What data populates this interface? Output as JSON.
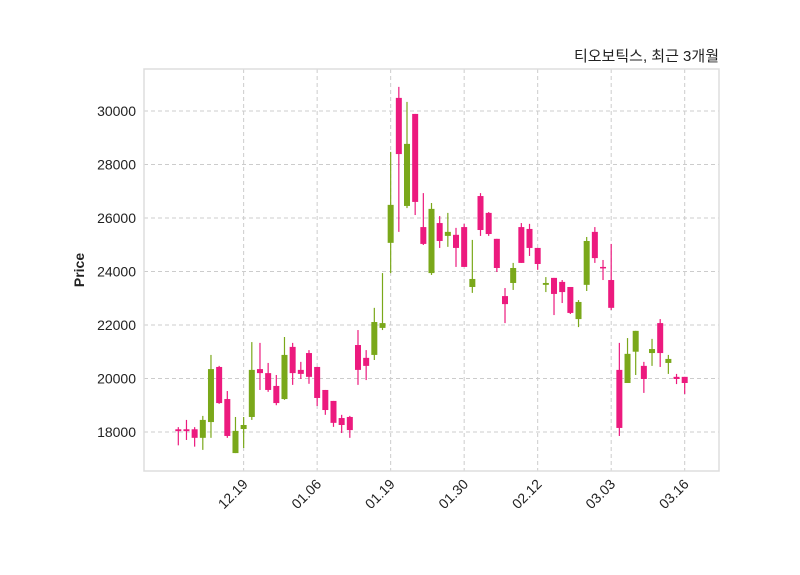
{
  "chart_data": {
    "type": "candlestick",
    "title": "티오보틱스, 최근 3개월",
    "xlabel": "",
    "ylabel": "Price",
    "ylim": [
      16540,
      31570
    ],
    "xlim": [
      -4.2,
      66.2
    ],
    "grid": true,
    "yticks": [
      18000,
      20000,
      22000,
      24000,
      26000,
      28000,
      30000
    ],
    "xticks": [
      {
        "index": 8,
        "label": "12.19"
      },
      {
        "index": 17,
        "label": "01.06"
      },
      {
        "index": 26,
        "label": "01.19"
      },
      {
        "index": 35,
        "label": "01.30"
      },
      {
        "index": 44,
        "label": "02.12"
      },
      {
        "index": 53,
        "label": "03.03"
      },
      {
        "index": 62,
        "label": "03.16"
      }
    ],
    "colors": {
      "up": "#7aa81a",
      "down": "#ec1a7e",
      "grid": "#cccccc",
      "frame": "#dddddd"
    },
    "ohlc": [
      [
        18100,
        18180,
        17500,
        18030
      ],
      [
        18100,
        18450,
        17700,
        18030
      ],
      [
        18100,
        18180,
        17450,
        17780
      ],
      [
        17780,
        18600,
        17330,
        18450
      ],
      [
        18370,
        20880,
        17780,
        20350
      ],
      [
        20430,
        20470,
        19050,
        19080
      ],
      [
        19230,
        19530,
        17780,
        17850
      ],
      [
        17210,
        18560,
        17210,
        18040
      ],
      [
        18110,
        18560,
        17400,
        18260
      ],
      [
        18560,
        21360,
        18450,
        20320
      ],
      [
        20350,
        21330,
        19570,
        20200
      ],
      [
        20200,
        20580,
        19500,
        19570
      ],
      [
        19720,
        20130,
        19000,
        19080
      ],
      [
        19230,
        21550,
        19200,
        20880
      ],
      [
        21180,
        21330,
        19760,
        20200
      ],
      [
        20320,
        20620,
        19980,
        20170
      ],
      [
        20950,
        21060,
        19800,
        20060
      ],
      [
        20430,
        20430,
        18970,
        19270
      ],
      [
        19570,
        19570,
        18640,
        18820
      ],
      [
        19160,
        19160,
        18190,
        18340
      ],
      [
        18520,
        18640,
        17960,
        18260
      ],
      [
        18560,
        18600,
        17780,
        18070
      ],
      [
        21250,
        21810,
        19760,
        20320
      ],
      [
        20770,
        21060,
        19940,
        20470
      ],
      [
        20880,
        22640,
        20690,
        22110
      ],
      [
        21890,
        23940,
        21810,
        22070
      ],
      [
        25070,
        28470,
        23940,
        26490
      ],
      [
        30490,
        30900,
        25480,
        28390
      ],
      [
        26450,
        30340,
        26370,
        28770
      ],
      [
        29890,
        29890,
        26110,
        26600
      ],
      [
        25660,
        26930,
        24990,
        25030
      ],
      [
        23940,
        26560,
        23870,
        26340
      ],
      [
        25810,
        26070,
        24880,
        25140
      ],
      [
        25330,
        26190,
        24920,
        25480
      ],
      [
        25370,
        25630,
        24170,
        24880
      ],
      [
        25660,
        25780,
        24170,
        24170
      ],
      [
        23420,
        25180,
        23200,
        23720
      ],
      [
        26820,
        26930,
        25330,
        25550
      ],
      [
        26190,
        26220,
        25330,
        25400
      ],
      [
        25220,
        25220,
        23980,
        24130
      ],
      [
        23080,
        23380,
        22070,
        22780
      ],
      [
        23570,
        24320,
        23310,
        24130
      ],
      [
        25660,
        25810,
        24320,
        24320
      ],
      [
        25590,
        25780,
        24580,
        24880
      ],
      [
        24880,
        24880,
        24060,
        24280
      ],
      [
        23500,
        23790,
        23230,
        23570
      ],
      [
        23760,
        23760,
        22370,
        23160
      ],
      [
        23610,
        23680,
        22820,
        23230
      ],
      [
        23420,
        23420,
        22410,
        22450
      ],
      [
        22220,
        22930,
        21920,
        22860
      ],
      [
        23500,
        25290,
        23270,
        25140
      ],
      [
        25480,
        25660,
        24320,
        24500
      ],
      [
        24170,
        24430,
        23680,
        24130
      ],
      [
        23680,
        25030,
        22560,
        22640
      ],
      [
        20320,
        21330,
        17850,
        18150
      ],
      [
        19830,
        21510,
        19830,
        20920
      ],
      [
        21000,
        21780,
        20130,
        21780
      ],
      [
        20470,
        20620,
        19460,
        19980
      ],
      [
        20950,
        21480,
        20470,
        21100
      ],
      [
        22070,
        22220,
        20430,
        20950
      ],
      [
        20580,
        20880,
        20170,
        20730
      ],
      [
        20060,
        20170,
        19790,
        19980
      ],
      [
        20060,
        20060,
        19420,
        19830
      ]
    ]
  }
}
